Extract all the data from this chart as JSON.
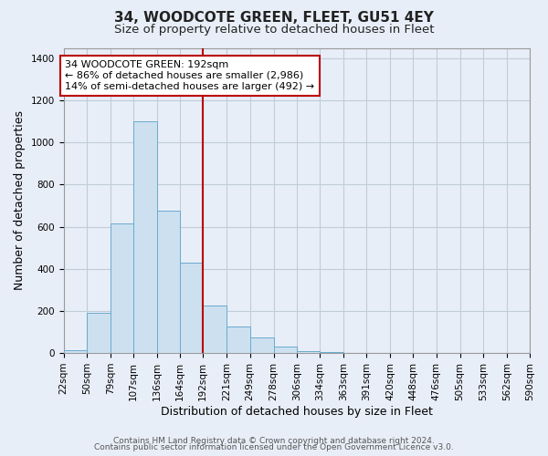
{
  "title": "34, WOODCOTE GREEN, FLEET, GU51 4EY",
  "subtitle": "Size of property relative to detached houses in Fleet",
  "xlabel": "Distribution of detached houses by size in Fleet",
  "ylabel": "Number of detached properties",
  "bar_color": "#cce0f0",
  "bar_edge_color": "#6aabcd",
  "annotation_line_color": "#bb0000",
  "annotation_box_edge_color": "#bb0000",
  "annotation_text_line1": "34 WOODCOTE GREEN: 192sqm",
  "annotation_text_line2": "← 86% of detached houses are smaller (2,986)",
  "annotation_text_line3": "14% of semi-detached houses are larger (492) →",
  "property_size_idx": 6,
  "bin_edges": [
    22,
    50,
    79,
    107,
    136,
    164,
    192,
    221,
    249,
    278,
    306,
    334,
    363,
    391,
    420,
    448,
    476,
    505,
    533,
    562,
    590
  ],
  "bin_labels": [
    "22sqm",
    "50sqm",
    "79sqm",
    "107sqm",
    "136sqm",
    "164sqm",
    "192sqm",
    "221sqm",
    "249sqm",
    "278sqm",
    "306sqm",
    "334sqm",
    "363sqm",
    "391sqm",
    "420sqm",
    "448sqm",
    "476sqm",
    "505sqm",
    "533sqm",
    "562sqm",
    "590sqm"
  ],
  "counts": [
    15,
    190,
    615,
    1100,
    675,
    430,
    225,
    125,
    75,
    30,
    10,
    3,
    1,
    0,
    0,
    0,
    0,
    0,
    0,
    0
  ],
  "ylim": [
    0,
    1450
  ],
  "yticks": [
    0,
    200,
    400,
    600,
    800,
    1000,
    1200,
    1400
  ],
  "footer1": "Contains HM Land Registry data © Crown copyright and database right 2024.",
  "footer2": "Contains public sector information licensed under the Open Government Licence v3.0.",
  "fig_bg_color": "#e8eef8",
  "plot_bg_color": "#e8eef8",
  "grid_color": "#c0ccd8",
  "title_fontsize": 11,
  "subtitle_fontsize": 9.5,
  "axis_label_fontsize": 9,
  "tick_label_fontsize": 7.5,
  "annotation_fontsize": 8,
  "footer_fontsize": 6.5
}
